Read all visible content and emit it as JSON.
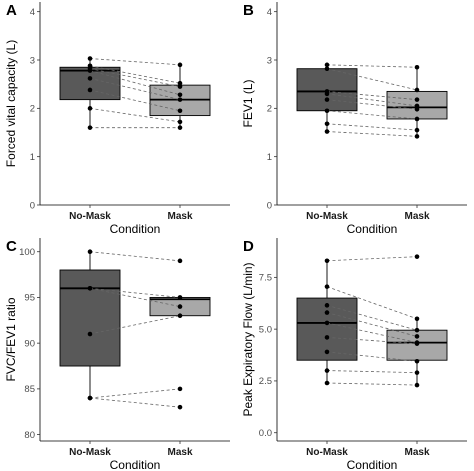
{
  "figure": {
    "background": "#ffffff"
  },
  "colors": {
    "no_mask_box": "#595959",
    "mask_box": "#a8a8a8",
    "line": "#000000",
    "pair_line": "#666666",
    "point": "#000000"
  },
  "chart_data": [
    {
      "panel_label": "A",
      "type": "box",
      "title": "",
      "xlabel": "Condition",
      "ylabel": "Forced vital capacity (L)",
      "categories": [
        "No-Mask",
        "Mask"
      ],
      "ylim": [
        0,
        4.2
      ],
      "yticks": [
        0,
        1,
        2,
        3,
        4
      ],
      "tick_labels": [
        "0",
        "1",
        "2",
        "3",
        "4"
      ],
      "boxes": [
        {
          "category": "No-Mask",
          "whisker_low": 1.6,
          "q1": 2.18,
          "median": 2.78,
          "q3": 2.85,
          "whisker_high": 3.05
        },
        {
          "category": "Mask",
          "whisker_low": 1.6,
          "q1": 1.85,
          "median": 2.18,
          "q3": 2.48,
          "whisker_high": 2.9
        }
      ],
      "pairs": [
        [
          3.03,
          2.9
        ],
        [
          2.88,
          2.52
        ],
        [
          2.82,
          2.45
        ],
        [
          2.78,
          2.28
        ],
        [
          2.62,
          2.18
        ],
        [
          2.38,
          1.95
        ],
        [
          2.0,
          1.72
        ],
        [
          1.6,
          1.6
        ]
      ]
    },
    {
      "panel_label": "B",
      "type": "box",
      "title": "",
      "xlabel": "Condition",
      "ylabel": "FEV1 (L)",
      "categories": [
        "No-Mask",
        "Mask"
      ],
      "ylim": [
        0,
        4.2
      ],
      "yticks": [
        0,
        1,
        2,
        3,
        4
      ],
      "tick_labels": [
        "0",
        "1",
        "2",
        "3",
        "4"
      ],
      "boxes": [
        {
          "category": "No-Mask",
          "whisker_low": 1.52,
          "q1": 1.95,
          "median": 2.35,
          "q3": 2.82,
          "whisker_high": 2.9
        },
        {
          "category": "Mask",
          "whisker_low": 1.42,
          "q1": 1.78,
          "median": 2.02,
          "q3": 2.35,
          "whisker_high": 2.85
        }
      ],
      "pairs": [
        [
          2.9,
          2.85
        ],
        [
          2.82,
          2.38
        ],
        [
          2.35,
          2.18
        ],
        [
          2.3,
          2.05
        ],
        [
          2.18,
          1.98
        ],
        [
          1.95,
          1.78
        ],
        [
          1.68,
          1.55
        ],
        [
          1.52,
          1.42
        ]
      ]
    },
    {
      "panel_label": "C",
      "type": "box",
      "title": "",
      "xlabel": "Condition",
      "ylabel": "FVC/FEV1 ratio",
      "categories": [
        "No-Mask",
        "Mask"
      ],
      "ylim": [
        79.3,
        101.5
      ],
      "yticks": [
        80,
        85,
        90,
        95,
        100
      ],
      "tick_labels": [
        "80",
        "85",
        "90",
        "95",
        "100"
      ],
      "boxes": [
        {
          "category": "No-Mask",
          "whisker_low": 84,
          "q1": 87.5,
          "median": 96,
          "q3": 98,
          "whisker_high": 100
        },
        {
          "category": "Mask",
          "whisker_low": 93,
          "q1": 93,
          "median": 94.8,
          "q3": 95,
          "whisker_high": 95
        }
      ],
      "pairs": [
        [
          100,
          99
        ],
        [
          96,
          95
        ],
        [
          96,
          94
        ],
        [
          91,
          93
        ],
        [
          84,
          85
        ],
        [
          84,
          83
        ]
      ],
      "outliers": [
        {
          "category": "Mask",
          "values": [
            99,
            85,
            83
          ]
        }
      ]
    },
    {
      "panel_label": "D",
      "type": "box",
      "title": "",
      "xlabel": "Condition",
      "ylabel": "Peak Expiratory Flow (L/min)",
      "categories": [
        "No-Mask",
        "Mask"
      ],
      "ylim": [
        -0.4,
        9.4
      ],
      "yticks": [
        0,
        2.5,
        5,
        7.5
      ],
      "tick_labels": [
        "0.0",
        "2.5",
        "5.0",
        "7.5"
      ],
      "boxes": [
        {
          "category": "No-Mask",
          "whisker_low": 2.4,
          "q1": 3.5,
          "median": 5.3,
          "q3": 6.5,
          "whisker_high": 8.3
        },
        {
          "category": "Mask",
          "whisker_low": 2.3,
          "q1": 3.5,
          "median": 4.35,
          "q3": 4.95,
          "whisker_high": 5.5
        }
      ],
      "pairs": [
        [
          8.3,
          8.5
        ],
        [
          7.05,
          5.5
        ],
        [
          6.15,
          4.95
        ],
        [
          5.8,
          4.65
        ],
        [
          5.3,
          4.35
        ],
        [
          4.6,
          4.3
        ],
        [
          3.9,
          3.45
        ],
        [
          3.0,
          2.9
        ],
        [
          2.4,
          2.3
        ]
      ],
      "outliers": [
        {
          "category": "Mask",
          "values": [
            8.5
          ]
        }
      ]
    }
  ]
}
